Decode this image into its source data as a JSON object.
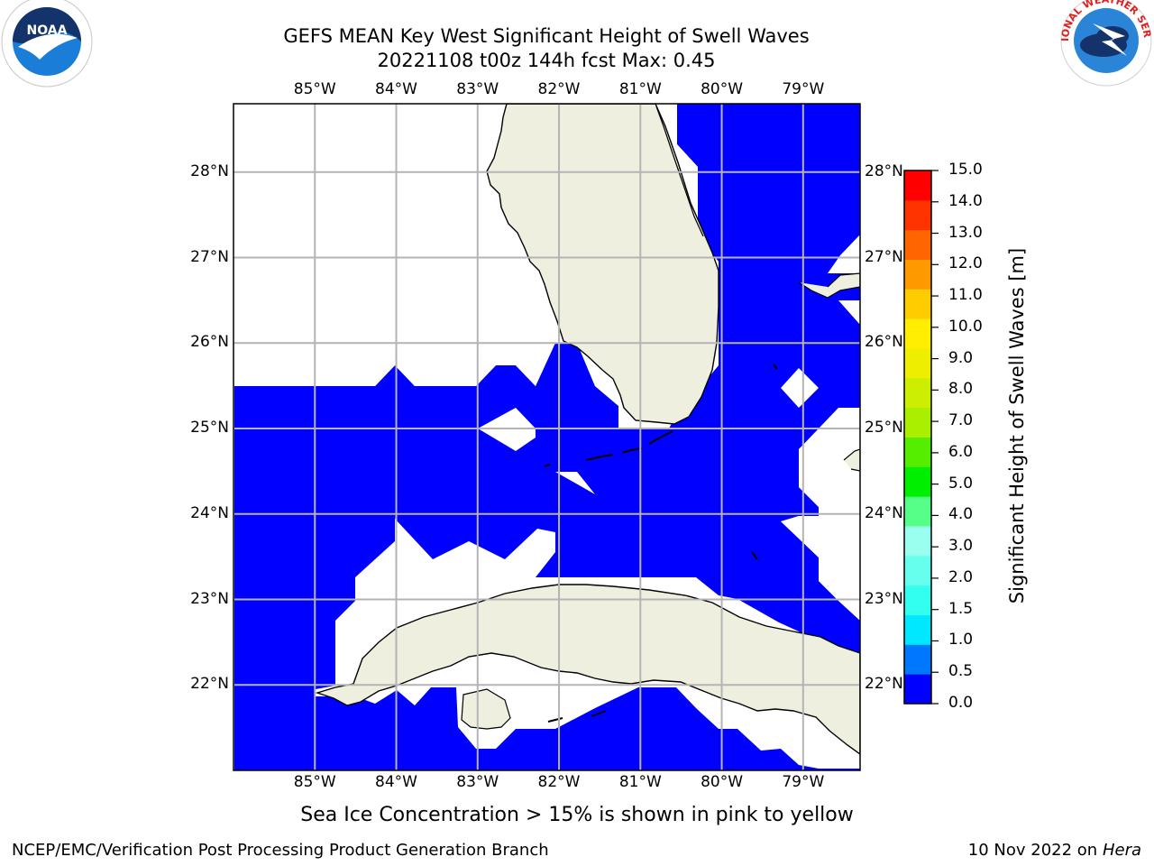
{
  "header": {
    "title_line1": "GEFS MEAN Key West Significant Height of Swell Waves",
    "title_line2": "20221108 t00z 144h fcst   Max: 0.45"
  },
  "map": {
    "lon_labels": [
      "85°W",
      "84°W",
      "83°W",
      "82°W",
      "81°W",
      "80°W",
      "79°W"
    ],
    "lon_values": [
      -85,
      -84,
      -83,
      -82,
      -81,
      -80,
      -79
    ],
    "lat_labels": [
      "22°N",
      "23°N",
      "24°N",
      "25°N",
      "26°N",
      "27°N",
      "28°N"
    ],
    "lat_values": [
      22,
      23,
      24,
      25,
      26,
      27,
      28
    ],
    "lon_range": [
      -86,
      -78.3
    ],
    "lat_range": [
      21,
      28.8
    ],
    "colors": {
      "water_field": "#0000ff",
      "no_data": "#ffffff",
      "land": "#efefdf",
      "coastline": "#000000",
      "grid": "#b4b4b4"
    }
  },
  "colorbar": {
    "label": "Significant Height of Swell Waves [m]",
    "tick_labels": [
      "0.0",
      "0.5",
      "1.0",
      "1.5",
      "2.0",
      "3.0",
      "4.0",
      "5.0",
      "6.0",
      "7.0",
      "8.0",
      "9.0",
      "10.0",
      "11.0",
      "12.0",
      "13.0",
      "14.0",
      "15.0"
    ],
    "colors": [
      "#0000ff",
      "#0077ff",
      "#00e8ff",
      "#33ffee",
      "#66ffee",
      "#99ffee",
      "#55ff88",
      "#00ee00",
      "#55ee00",
      "#aaee00",
      "#ccee00",
      "#eeee00",
      "#ffee00",
      "#ffcc00",
      "#ff9900",
      "#ff6600",
      "#ff3300",
      "#ff0000"
    ]
  },
  "logos": {
    "left": "NOAA",
    "right": "NATIONAL WEATHER SERVICE"
  },
  "footer": {
    "ice_note": "Sea Ice Concentration > 15% is shown in pink to yellow",
    "producer": "NCEP/EMC/Verification Post Processing Product Generation Branch",
    "date": "10 Nov 2022 on",
    "host": "Hera"
  }
}
